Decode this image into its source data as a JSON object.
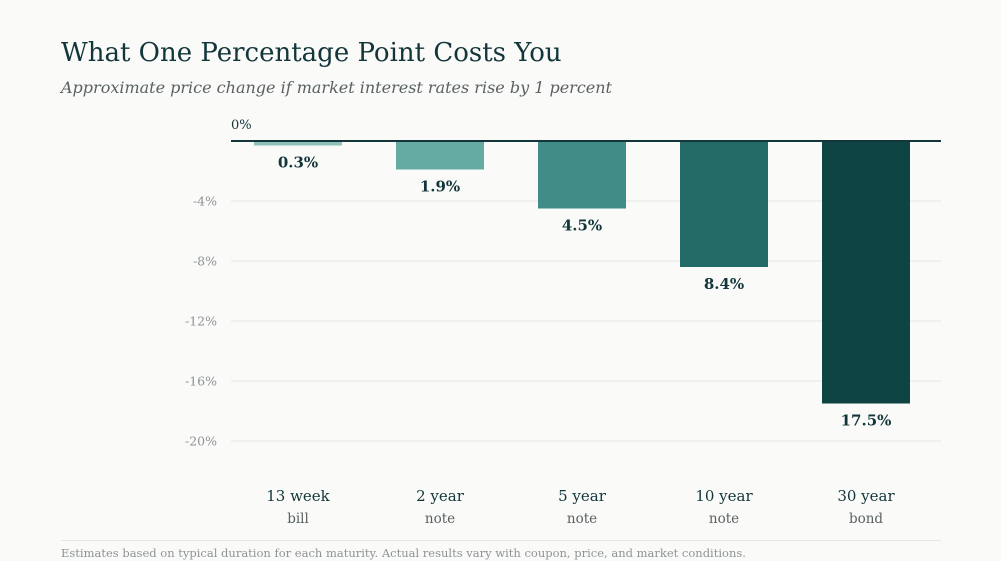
{
  "header": {
    "title": "What One Percentage Point Costs You",
    "subtitle": "Approximate price change if market interest rates rise by 1 percent"
  },
  "footnote": "Estimates based on typical duration for each maturity. Actual results vary with coupon, price, and market conditions.",
  "chart_data": {
    "type": "bar",
    "title": "What One Percentage Point Costs You",
    "subtitle": "Approximate price change if market interest rates rise by 1 percent",
    "xlabel": "",
    "ylabel": "",
    "ylim": [
      -20,
      0
    ],
    "yticks": [
      0,
      -4,
      -8,
      -12,
      -16,
      -20
    ],
    "ytick_labels": [
      "0%",
      "-4%",
      "-8%",
      "-12%",
      "-16%",
      "-20%"
    ],
    "grid": true,
    "legend": "none",
    "categories": [
      {
        "name": "13 week",
        "sub": "bill"
      },
      {
        "name": "2 year",
        "sub": "note"
      },
      {
        "name": "5 year",
        "sub": "note"
      },
      {
        "name": "10 year",
        "sub": "note"
      },
      {
        "name": "30 year",
        "sub": "bond"
      }
    ],
    "values": [
      -0.3,
      -1.9,
      -4.5,
      -8.4,
      -17.5
    ],
    "data_labels": [
      "0.3%",
      "1.9%",
      "4.5%",
      "8.4%",
      "17.5%"
    ],
    "colors": [
      "#8ec1b9",
      "#66aba3",
      "#3f8d86",
      "#246a66",
      "#0f4444"
    ],
    "colors_meta": {
      "axis": "#12363a",
      "grid": "#ececea",
      "tick_text": "#8d9496",
      "label_text": "#12363a"
    }
  }
}
